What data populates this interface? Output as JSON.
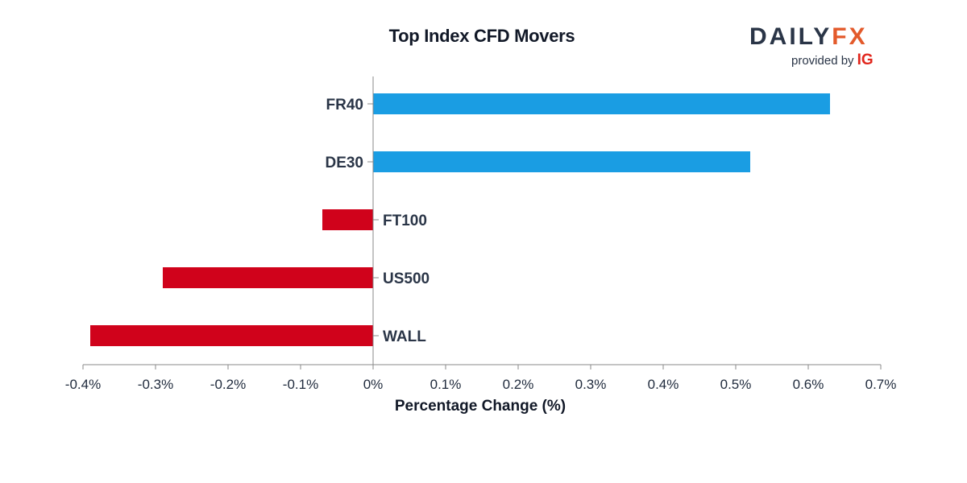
{
  "header": {
    "title": "Top Index CFD Movers"
  },
  "logo": {
    "brand_part1": "DAILY",
    "brand_part2": "FX",
    "provided_by": "provided by",
    "provider": "IG"
  },
  "colors": {
    "positive": "#1a9de3",
    "negative": "#d0021b",
    "axis": "#888888",
    "text": "#2a3547"
  },
  "chart_data": {
    "type": "bar",
    "orientation": "horizontal",
    "title": "Top Index CFD Movers",
    "xlabel": "Percentage Change (%)",
    "ylabel": "",
    "xlim": [
      -0.4,
      0.7
    ],
    "xticks": [
      -0.4,
      -0.3,
      -0.2,
      -0.1,
      0,
      0.1,
      0.2,
      0.3,
      0.4,
      0.5,
      0.6,
      0.7
    ],
    "xtick_labels": [
      "-0.4%",
      "-0.3%",
      "-0.2%",
      "-0.1%",
      "0%",
      "0.1%",
      "0.2%",
      "0.3%",
      "0.4%",
      "0.5%",
      "0.6%",
      "0.7%"
    ],
    "categories": [
      "FR40",
      "DE30",
      "FT100",
      "US500",
      "WALL"
    ],
    "values": [
      0.63,
      0.52,
      -0.07,
      -0.29,
      -0.39
    ],
    "grid": false,
    "legend": "none"
  }
}
